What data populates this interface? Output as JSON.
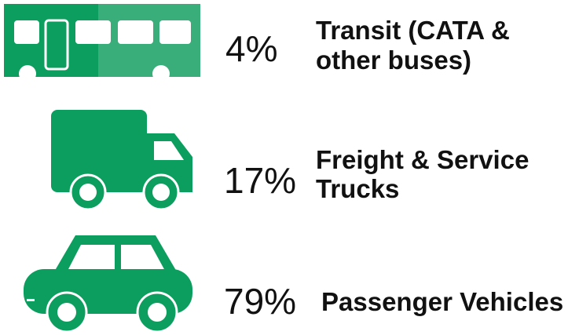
{
  "items": [
    {
      "percent": "4%",
      "label": [
        "Transit (CATA &",
        "other buses)"
      ]
    },
    {
      "percent": "17%",
      "label": [
        "Freight & Service",
        "Trucks"
      ]
    },
    {
      "percent": "79%",
      "label": [
        "Passenger Vehicles"
      ]
    }
  ]
}
